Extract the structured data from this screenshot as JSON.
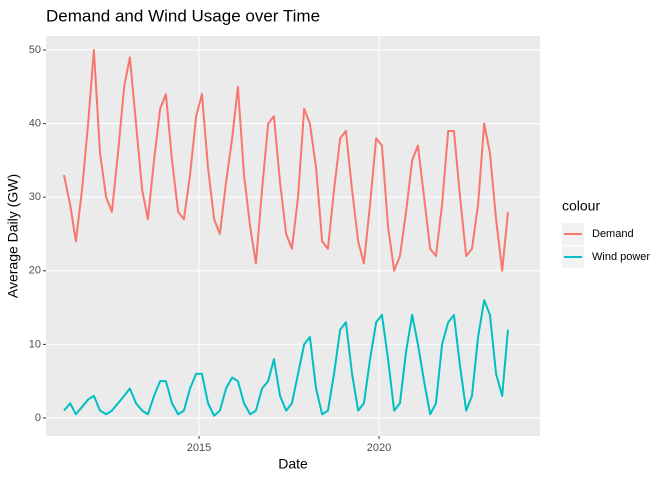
{
  "chart_data": {
    "type": "line",
    "title": "Demand and Wind Usage over Time",
    "x_label": "Date",
    "y_label": "Average Daily (GW)",
    "legend_title": "colour",
    "legend_position": "right",
    "grid": true,
    "xlim": [
      2010.75,
      2024.47
    ],
    "xticks": [
      2015,
      2020
    ],
    "ylim": [
      -2.45,
      51.9
    ],
    "yticks": [
      0,
      10,
      20,
      30,
      40,
      50
    ],
    "x": [
      2011.25,
      2011.42,
      2011.58,
      2011.75,
      2011.92,
      2012.08,
      2012.25,
      2012.42,
      2012.58,
      2012.75,
      2012.92,
      2013.08,
      2013.25,
      2013.42,
      2013.58,
      2013.75,
      2013.92,
      2014.08,
      2014.25,
      2014.42,
      2014.58,
      2014.75,
      2014.92,
      2015.08,
      2015.25,
      2015.42,
      2015.58,
      2015.75,
      2015.92,
      2016.08,
      2016.25,
      2016.42,
      2016.58,
      2016.75,
      2016.92,
      2017.08,
      2017.25,
      2017.42,
      2017.58,
      2017.75,
      2017.92,
      2018.08,
      2018.25,
      2018.42,
      2018.58,
      2018.75,
      2018.92,
      2019.08,
      2019.25,
      2019.42,
      2019.58,
      2019.75,
      2019.92,
      2020.08,
      2020.25,
      2020.42,
      2020.58,
      2020.75,
      2020.92,
      2021.08,
      2021.25,
      2021.42,
      2021.58,
      2021.75,
      2021.92,
      2022.08,
      2022.25,
      2022.42,
      2022.58,
      2022.75,
      2022.92,
      2023.08,
      2023.25,
      2023.42,
      2023.58
    ],
    "series": [
      {
        "name": "Demand",
        "color": "#F8766D",
        "values": [
          33,
          29,
          24,
          31,
          40,
          50,
          36,
          30,
          28,
          36,
          45,
          49,
          40,
          31,
          27,
          35,
          42,
          44,
          35,
          28,
          27,
          33,
          41,
          44,
          34,
          27,
          25,
          32,
          38,
          45,
          33,
          26,
          21,
          31,
          40,
          41,
          32,
          25,
          23,
          30,
          42,
          40,
          34,
          24,
          23,
          31,
          38,
          39,
          31,
          24,
          21,
          29,
          38,
          37,
          26,
          20,
          22,
          28,
          35,
          37,
          30,
          23,
          22,
          29,
          39,
          39,
          30,
          22,
          23,
          29,
          40,
          36,
          27,
          20,
          28
        ]
      },
      {
        "name": "Wind power",
        "color": "#00BFC4",
        "values": [
          1,
          2,
          0.5,
          1.5,
          2.5,
          3,
          1,
          0.5,
          1,
          2,
          3,
          4,
          2,
          1,
          0.5,
          3,
          5,
          5,
          2,
          0.5,
          1,
          4,
          6,
          6,
          2,
          0.3,
          1,
          4,
          5.5,
          5,
          2,
          0.5,
          1,
          4,
          5,
          8,
          3,
          1,
          2,
          6,
          10,
          11,
          4,
          0.5,
          1,
          6,
          12,
          13,
          6,
          1,
          2,
          8,
          13,
          14,
          8,
          1,
          2,
          9,
          14,
          10,
          5,
          0.5,
          2,
          10,
          13,
          14,
          7,
          1,
          3,
          11,
          16,
          14,
          6,
          3,
          12
        ]
      }
    ]
  }
}
